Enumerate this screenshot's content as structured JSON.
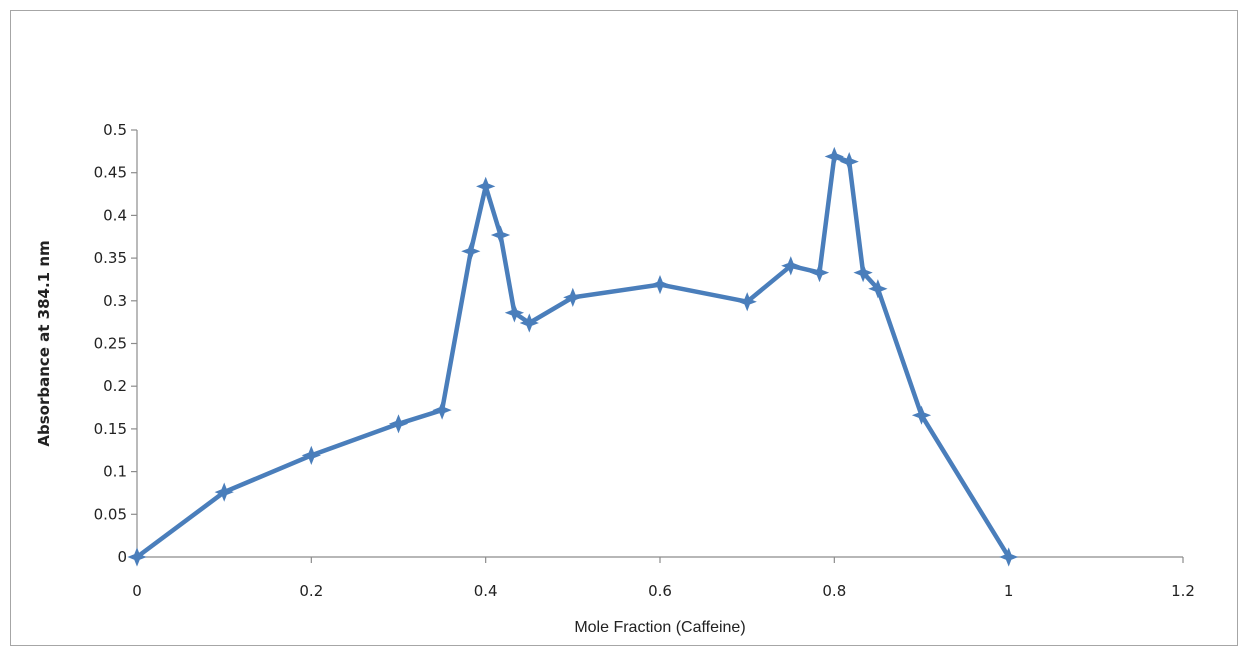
{
  "chart_data": {
    "type": "line",
    "title": "",
    "xlabel": "Mole Fraction (Caffeine)",
    "ylabel": "Absorbance at 384.1 nm",
    "xlim": [
      0,
      1.2
    ],
    "ylim": [
      0,
      0.5
    ],
    "x_ticks": [
      "0",
      "0.2",
      "0.4",
      "0.6",
      "0.8",
      "1",
      "1.2"
    ],
    "y_ticks": [
      "0",
      "0.05",
      "0.1",
      "0.15",
      "0.2",
      "0.25",
      "0.3",
      "0.35",
      "0.4",
      "0.45",
      "0.5"
    ],
    "grid": false,
    "legend": "none",
    "marker": "star",
    "series_color": "#4a7ebb",
    "series": [
      {
        "x": [
          0,
          0.1,
          0.2,
          0.3,
          0.35,
          0.383,
          0.4,
          0.417,
          0.433,
          0.45,
          0.5,
          0.6,
          0.7,
          0.75,
          0.783,
          0.8,
          0.817,
          0.833,
          0.85,
          0.9,
          1
        ],
        "values": [
          0,
          0.076,
          0.119,
          0.156,
          0.172,
          0.358,
          0.434,
          0.377,
          0.286,
          0.274,
          0.304,
          0.319,
          0.299,
          0.341,
          0.333,
          0.469,
          0.463,
          0.333,
          0.314,
          0.166,
          0
        ]
      }
    ]
  }
}
